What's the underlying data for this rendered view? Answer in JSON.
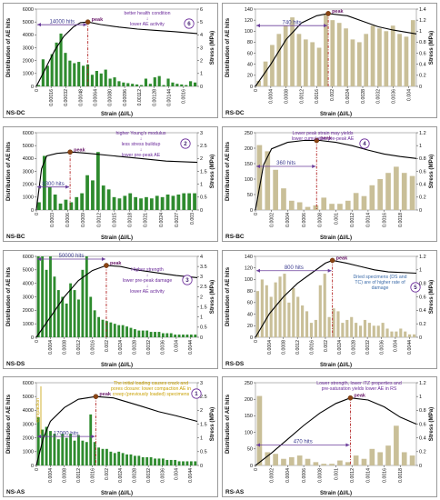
{
  "figure": {
    "panel_count": 8
  },
  "chart_data": [
    {
      "id": "ns-dc",
      "panel_title": "NS-DC",
      "type": "bar",
      "bar_color": "#2e8b2e",
      "xlabel": "Strain (Δl/L)",
      "ylabel": "Distribution of AE hits",
      "y2label": "Stress (MPa)",
      "ylim": [
        0,
        6000
      ],
      "yticks": [
        0,
        1000,
        2000,
        3000,
        4000,
        5000,
        6000
      ],
      "y2lim": [
        0,
        6
      ],
      "y2ticks": [
        0,
        1,
        2,
        3,
        4,
        5,
        6
      ],
      "xlim": [
        0,
        0.00175
      ],
      "xticks": [
        0,
        0.00016,
        0.00032,
        0.00048,
        0.00064,
        0.0008,
        0.00096,
        0.00112,
        0.00128,
        0.00144,
        0.0016
      ],
      "xticklabels": [
        "0",
        "0.00016",
        "0.00032",
        "0.00048",
        "0.00064",
        "0.00080",
        "0.00096",
        "0.00112",
        "0.00128",
        "0.00144",
        "0.0016"
      ],
      "bars": [
        100,
        2100,
        1600,
        2500,
        3400,
        4100,
        2600,
        2000,
        1800,
        1900,
        1600,
        1700,
        900,
        1200,
        1000,
        1300,
        600,
        700,
        400,
        300,
        250,
        200,
        150,
        100,
        600,
        200,
        700,
        800,
        100,
        600,
        300,
        200,
        150,
        100,
        400,
        300
      ],
      "stress_curve": [
        [
          0,
          0
        ],
        [
          0.0001,
          1.4
        ],
        [
          0.0002,
          2.8
        ],
        [
          0.0003,
          3.9
        ],
        [
          0.0004,
          4.6
        ],
        [
          0.00048,
          4.95
        ],
        [
          0.00056,
          5.0
        ],
        [
          0.0007,
          4.8
        ],
        [
          0.0009,
          4.6
        ],
        [
          0.0011,
          4.45
        ],
        [
          0.0013,
          4.35
        ],
        [
          0.0015,
          4.25
        ],
        [
          0.00175,
          4.1
        ]
      ],
      "peak": {
        "x": 0.00056,
        "y": 5.0,
        "label": "peak"
      },
      "range": {
        "x1": 0,
        "x2": 0.00056,
        "y": 5000,
        "label": "14000 hits"
      },
      "annotation": {
        "text": "better health condition\n↓\nlower AE activity",
        "number": "6"
      }
    },
    {
      "id": "rs-dc",
      "panel_title": "RS-DC",
      "type": "bar",
      "bar_color": "#c9bf98",
      "xlabel": "Strain (Δl/L)",
      "ylabel": "Distribution of AE hits",
      "y2label": "Stress (MPa)",
      "ylim": [
        0,
        140
      ],
      "yticks": [
        0,
        20,
        40,
        60,
        80,
        100,
        120,
        140
      ],
      "y2lim": [
        0,
        1.4
      ],
      "y2ticks": [
        0,
        0.2,
        0.4,
        0.6,
        0.8,
        1,
        1.2,
        1.4
      ],
      "xlim": [
        0,
        0.0042
      ],
      "xticks": [
        0,
        0.0004,
        0.0008,
        0.0012,
        0.0016,
        0.002,
        0.0024,
        0.0028,
        0.0032,
        0.0036,
        0.004
      ],
      "xticklabels": [
        "0",
        "0.0004",
        "0.0008",
        "0.0012",
        "0.0016",
        "0.002",
        "0.0024",
        "0.0028",
        "0.0032",
        "0.0036",
        "0.004"
      ],
      "bars": [
        10,
        45,
        75,
        95,
        110,
        125,
        95,
        85,
        80,
        70,
        130,
        120,
        115,
        105,
        85,
        80,
        95,
        110,
        105,
        100,
        110,
        95,
        90,
        120
      ],
      "stress_curve": [
        [
          0,
          0
        ],
        [
          0.0004,
          0.4
        ],
        [
          0.0008,
          0.85
        ],
        [
          0.0012,
          1.15
        ],
        [
          0.0016,
          1.28
        ],
        [
          0.0019,
          1.32
        ],
        [
          0.0024,
          1.28
        ],
        [
          0.0028,
          1.18
        ],
        [
          0.0032,
          1.08
        ],
        [
          0.0036,
          1.02
        ],
        [
          0.0042,
          0.95
        ]
      ],
      "peak": {
        "x": 0.0019,
        "y": 1.32,
        "label": "peak"
      },
      "range": {
        "x1": 0,
        "x2": 0.0019,
        "y": 115,
        "label": "740 hits"
      },
      "annotation": null
    },
    {
      "id": "ns-bc",
      "panel_title": "NS-BC",
      "type": "bar",
      "bar_color": "#2e8b2e",
      "xlabel": "Strain (Δl/L)",
      "ylabel": "Distribution of AE hits",
      "y2label": "Stress (MPa)",
      "ylim": [
        0,
        6000
      ],
      "yticks": [
        0,
        1000,
        2000,
        3000,
        4000,
        5000,
        6000
      ],
      "y2lim": [
        0,
        3
      ],
      "y2ticks": [
        0,
        0.5,
        1,
        1.5,
        2,
        2.5,
        3
      ],
      "xlim": [
        0,
        0.0031
      ],
      "xticks": [
        0,
        0.0003,
        0.0006,
        0.0009,
        0.0012,
        0.0015,
        0.0018,
        0.0021,
        0.0024,
        0.0027,
        0.003
      ],
      "xticklabels": [
        "0",
        "0.0003",
        "0.0006",
        "0.0009",
        "0.0012",
        "0.0015",
        "0.0018",
        "0.0021",
        "0.0024",
        "0.0027",
        "0.003"
      ],
      "bars": [
        600,
        4200,
        1800,
        1200,
        500,
        800,
        600,
        1000,
        1300,
        2700,
        2300,
        4500,
        1900,
        1600,
        1000,
        900,
        1100,
        1300,
        1000,
        900,
        1000,
        900,
        1100,
        1000,
        1200,
        1100,
        1200,
        1300,
        1300,
        1300
      ],
      "stress_curve": [
        [
          0,
          0
        ],
        [
          0.0001,
          1.6
        ],
        [
          0.0002,
          2.1
        ],
        [
          0.0004,
          2.2
        ],
        [
          0.0007,
          2.25
        ],
        [
          0.001,
          2.2
        ],
        [
          0.0015,
          2.1
        ],
        [
          0.002,
          2.0
        ],
        [
          0.0025,
          1.9
        ],
        [
          0.0031,
          1.85
        ]
      ],
      "peak": {
        "x": 0.00065,
        "y": 2.25,
        "label": "peak"
      },
      "range": {
        "x1": 0,
        "x2": 0.00065,
        "y": 2000,
        "label": "8300 hits"
      },
      "annotation": {
        "text": "higher Young's modulus\n↓\nless stress buildup\n↓\nlower pre-peak  AE",
        "number": "2"
      }
    },
    {
      "id": "rs-bc",
      "panel_title": "RS-BC",
      "type": "bar",
      "bar_color": "#c9bf98",
      "xlabel": "Strain (Δl/L)",
      "ylabel": "Distribution of AE hits",
      "y2label": "Stress (MPa)",
      "ylim": [
        0,
        250
      ],
      "yticks": [
        0,
        50,
        100,
        150,
        200,
        250
      ],
      "y2lim": [
        0,
        1.2
      ],
      "y2ticks": [
        0,
        0.2,
        0.4,
        0.6,
        0.8,
        1,
        1.2
      ],
      "xlim": [
        0,
        0.002
      ],
      "xticks": [
        0,
        0.0002,
        0.0004,
        0.0006,
        0.0008,
        0.001,
        0.0012,
        0.0014,
        0.0016,
        0.0018
      ],
      "xticklabels": [
        "0",
        "0.0002",
        "0.0004",
        "0.0006",
        "0.0008",
        "0.001",
        "0.0012",
        "0.0014",
        "0.0016",
        "0.0018"
      ],
      "bars": [
        210,
        190,
        130,
        70,
        30,
        25,
        10,
        15,
        40,
        20,
        20,
        30,
        55,
        45,
        80,
        100,
        120,
        140,
        120,
        110
      ],
      "stress_curve": [
        [
          0,
          0
        ],
        [
          0.0001,
          0.7
        ],
        [
          0.0002,
          0.95
        ],
        [
          0.0004,
          1.05
        ],
        [
          0.0006,
          1.08
        ],
        [
          0.0008,
          1.08
        ],
        [
          0.001,
          1.05
        ],
        [
          0.0012,
          1.0
        ],
        [
          0.0014,
          0.93
        ],
        [
          0.0016,
          0.87
        ],
        [
          0.0018,
          0.83
        ],
        [
          0.002,
          0.8
        ]
      ],
      "peak": {
        "x": 0.00076,
        "y": 1.08,
        "label": "peak"
      },
      "range": {
        "x1": 0,
        "x2": 0.00076,
        "y": 150,
        "label": "360 hits"
      },
      "annotation": {
        "text": "Lower peak strain may yields lower cumulative pre-peak AE",
        "number": "4"
      }
    },
    {
      "id": "ns-ds",
      "panel_title": "NS-DS",
      "type": "bar",
      "bar_color": "#2e8b2e",
      "xlabel": "Strain (Δl/L)",
      "ylabel": "Distribution of AE hits",
      "y2label": "Stress (MPa)",
      "ylim": [
        0,
        6000
      ],
      "yticks": [
        0,
        1000,
        2000,
        3000,
        4000,
        5000,
        6000
      ],
      "y2lim": [
        0,
        4
      ],
      "y2ticks": [
        0,
        0.5,
        1,
        1.5,
        2,
        2.5,
        3,
        3.5,
        4
      ],
      "xlim": [
        0,
        0.0046
      ],
      "xticks": [
        0,
        0.0004,
        0.0008,
        0.0012,
        0.0016,
        0.002,
        0.0024,
        0.0028,
        0.0032,
        0.0036,
        0.004,
        0.0044
      ],
      "xticklabels": [
        "0",
        "0.0004",
        "0.0008",
        "0.0012",
        "0.0016",
        "0.002",
        "0.0024",
        "0.0028",
        "0.0032",
        "0.0036",
        "0.004",
        "0.0044"
      ],
      "bars": [
        6000,
        6000,
        5000,
        6000,
        4500,
        3500,
        3000,
        2500,
        4000,
        3500,
        2800,
        5000,
        6000,
        3000,
        2000,
        1500,
        1300,
        1200,
        1100,
        1000,
        900,
        900,
        800,
        700,
        600,
        500,
        500,
        500,
        400,
        400,
        400,
        300,
        300,
        300,
        200,
        200,
        200,
        200,
        200,
        200
      ],
      "stress_curve": [
        [
          0,
          0
        ],
        [
          0.0004,
          1.0
        ],
        [
          0.0008,
          2.0
        ],
        [
          0.0012,
          2.8
        ],
        [
          0.0016,
          3.3
        ],
        [
          0.002,
          3.55
        ],
        [
          0.0024,
          3.5
        ],
        [
          0.0028,
          3.35
        ],
        [
          0.0032,
          3.25
        ],
        [
          0.0036,
          3.15
        ],
        [
          0.004,
          3.05
        ],
        [
          0.0046,
          2.95
        ]
      ],
      "peak": {
        "x": 0.002,
        "y": 3.55,
        "label": "peak"
      },
      "range": {
        "x1": 0,
        "x2": 0.002,
        "y": 6000,
        "label": "50000 hits"
      },
      "annotation": {
        "text": "Higher strength\n↓\nlower pre-peak damage\n↓\nlower AE activity",
        "number": "3"
      }
    },
    {
      "id": "rs-ds",
      "panel_title": "RS-DS",
      "type": "bar",
      "bar_color": "#c9bf98",
      "xlabel": "Strain (Δl/L)",
      "ylabel": "Distribution of AE hits",
      "y2label": "Stress (MPa)",
      "ylim": [
        0,
        140
      ],
      "yticks": [
        0,
        20,
        40,
        60,
        80,
        100,
        120,
        140
      ],
      "y2lim": [
        0,
        1.2
      ],
      "y2ticks": [
        0,
        0.2,
        0.4,
        0.6,
        0.8,
        1,
        1.2
      ],
      "xlim": [
        0,
        0.0046
      ],
      "xticks": [
        0,
        0.0004,
        0.0008,
        0.0012,
        0.0016,
        0.002,
        0.0024,
        0.0028,
        0.0032,
        0.0036,
        0.004,
        0.0044
      ],
      "xticklabels": [
        "0",
        "0.0004",
        "0.0008",
        "0.0012",
        "0.0016",
        "0.002",
        "0.0024",
        "0.0028",
        "0.0032",
        "0.0036",
        "0.004",
        "0.0044"
      ],
      "bars": [
        80,
        100,
        90,
        70,
        95,
        105,
        110,
        60,
        85,
        70,
        55,
        45,
        25,
        30,
        90,
        110,
        35,
        50,
        45,
        25,
        30,
        35,
        25,
        20,
        30,
        25,
        20,
        20,
        25,
        15,
        10,
        10,
        15,
        10,
        5,
        5
      ],
      "stress_curve": [
        [
          0,
          0
        ],
        [
          0.0004,
          0.35
        ],
        [
          0.0008,
          0.6
        ],
        [
          0.0012,
          0.8
        ],
        [
          0.0016,
          0.95
        ],
        [
          0.002,
          1.1
        ],
        [
          0.0022,
          1.14
        ],
        [
          0.0026,
          1.1
        ],
        [
          0.003,
          1.05
        ],
        [
          0.0034,
          1.0
        ],
        [
          0.0038,
          0.97
        ],
        [
          0.0046,
          0.95
        ]
      ],
      "peak": {
        "x": 0.0022,
        "y": 1.14,
        "label": "peak"
      },
      "range": {
        "x1": 0,
        "x2": 0.0022,
        "y": 120,
        "label": "800 hits"
      },
      "annotation": {
        "text": "Dried specimens (DS and TC) are of higher rate of damage",
        "number": "5"
      }
    },
    {
      "id": "ns-as",
      "panel_title": "NS-AS",
      "type": "bar",
      "bar_color": "#2e8b2e",
      "xlabel": "Strain (Δl/L)",
      "ylabel": "Distribution of AE hits",
      "y2label": "Stress (MPa)",
      "ylim": [
        0,
        6000
      ],
      "yticks": [
        0,
        1000,
        2000,
        3000,
        4000,
        5000,
        6000
      ],
      "y2lim": [
        0,
        3
      ],
      "y2ticks": [
        0,
        0.5,
        1,
        1.5,
        2,
        2.5,
        3
      ],
      "xlim": [
        0,
        0.0046
      ],
      "xticks": [
        0,
        0.0004,
        0.0008,
        0.0012,
        0.0016,
        0.002,
        0.0024,
        0.0028,
        0.0032,
        0.0036,
        0.004,
        0.0044
      ],
      "xticklabels": [
        "0",
        "0.0004",
        "0.0008",
        "0.0012",
        "0.0016",
        "0.002",
        "0.0024",
        "0.0028",
        "0.0032",
        "0.0036",
        "0.004",
        "0.0044"
      ],
      "bars": [
        3500,
        2600,
        2800,
        2500,
        2300,
        1900,
        2300,
        2000,
        2300,
        1800,
        2200,
        1800,
        1700,
        3700,
        1700,
        1300,
        1200,
        1200,
        1000,
        900,
        1000,
        900,
        800,
        800,
        700,
        700,
        600,
        600,
        600,
        500,
        500,
        500,
        400,
        400,
        400,
        300,
        300,
        300,
        300,
        300
      ],
      "stress_curve": [
        [
          0,
          0
        ],
        [
          0.0002,
          1.0
        ],
        [
          0.0004,
          1.6
        ],
        [
          0.0008,
          2.1
        ],
        [
          0.0012,
          2.4
        ],
        [
          0.0017,
          2.5
        ],
        [
          0.0022,
          2.45
        ],
        [
          0.0026,
          2.3
        ],
        [
          0.003,
          2.15
        ],
        [
          0.0035,
          1.95
        ],
        [
          0.004,
          1.8
        ],
        [
          0.0046,
          1.6
        ]
      ],
      "peak": {
        "x": 0.0017,
        "y": 2.5,
        "label": "peak"
      },
      "range": {
        "x1": 0,
        "x2": 0.0017,
        "y": 2300,
        "label": "17000 hits"
      },
      "side_label": "compaction",
      "annotation": {
        "text": "The initial loading causes crack and pores closure: lower compaction AE in creep (previously loaded) specimens",
        "number": "1"
      }
    },
    {
      "id": "rs-as",
      "panel_title": "RS-AS",
      "type": "bar",
      "bar_color": "#c9bf98",
      "xlabel": "Strain (Δl/L)",
      "ylabel": "Distribution of AE hits",
      "y2label": "Stress (MPa)",
      "ylim": [
        0,
        250
      ],
      "yticks": [
        0,
        50,
        100,
        150,
        200,
        250
      ],
      "y2lim": [
        0,
        1.2
      ],
      "y2ticks": [
        0,
        0.2,
        0.4,
        0.6,
        0.8,
        1,
        1.2
      ],
      "xlim": [
        0,
        0.002
      ],
      "xticks": [
        0,
        0.0002,
        0.0004,
        0.0006,
        0.0008,
        0.001,
        0.0012,
        0.0014,
        0.0016,
        0.0018
      ],
      "xticklabels": [
        "0",
        "0.0002",
        "0.0004",
        "0.0006",
        "0.0008",
        "0.001",
        "0.0012",
        "0.0014",
        "0.0016",
        "0.0018"
      ],
      "bars": [
        210,
        40,
        35,
        20,
        25,
        30,
        20,
        10,
        5,
        5,
        15,
        10,
        30,
        20,
        50,
        40,
        60,
        120,
        40,
        30
      ],
      "stress_curve": [
        [
          0,
          0
        ],
        [
          0.0002,
          0.18
        ],
        [
          0.0004,
          0.38
        ],
        [
          0.0006,
          0.58
        ],
        [
          0.0008,
          0.76
        ],
        [
          0.001,
          0.9
        ],
        [
          0.00118,
          0.98
        ],
        [
          0.0014,
          0.95
        ],
        [
          0.0016,
          0.85
        ],
        [
          0.0018,
          0.7
        ],
        [
          0.002,
          0.6
        ]
      ],
      "peak": {
        "x": 0.00118,
        "y": 0.98,
        "label": "peak"
      },
      "range": {
        "x1": 0,
        "x2": 0.00118,
        "y": 70,
        "label": "470 hits"
      },
      "annotation": {
        "text": "Lower strength, lower ITZ properties and pre-saturation yields lower AE in RS",
        "number": ""
      }
    }
  ]
}
